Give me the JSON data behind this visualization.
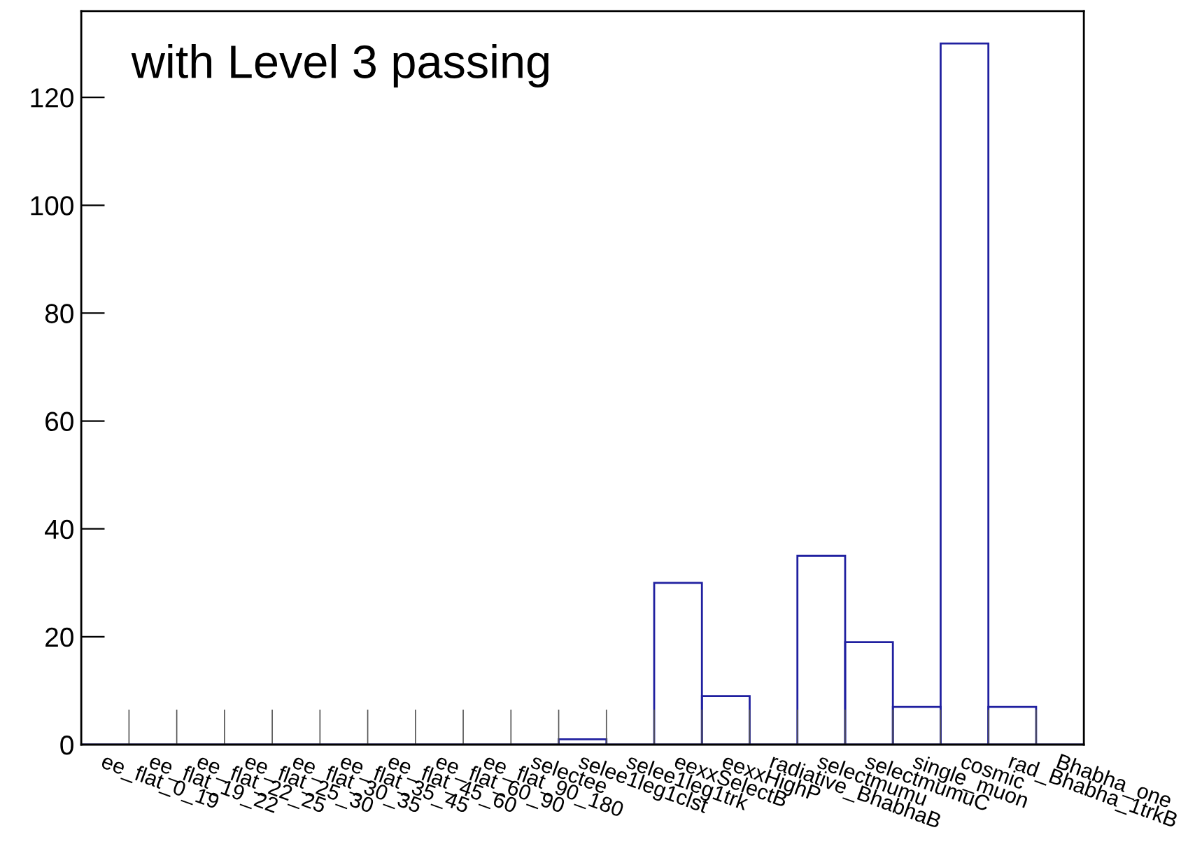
{
  "chart_data": {
    "type": "bar",
    "title": "with Level 3 passing",
    "categories": [
      "ee_flat_0_19",
      "ee_flat_19_22",
      "ee_flat_22_25",
      "ee_flat_25_30",
      "ee_flat_30_35",
      "ee_flat_35_45",
      "ee_flat_45_60",
      "ee_flat_60_90",
      "ee_flat_90_180",
      "selectee",
      "selee1leg1clst",
      "selee1leg1trk",
      "eexxSelectB",
      "eexxHighP",
      "radiative_BhabhaB",
      "selectmumu",
      "selectmumuC",
      "single_muon",
      "cosmic",
      "rad_Bhabha_1trkB",
      "Bhabha_one"
    ],
    "values": [
      0,
      0,
      0,
      0,
      0,
      0,
      0,
      0,
      0,
      0,
      1,
      0,
      30,
      9,
      0,
      35,
      19,
      7,
      130,
      7,
      0
    ],
    "color": "#2020a0",
    "ylim": [
      0,
      136
    ],
    "yticks": [
      0,
      20,
      40,
      60,
      80,
      100,
      120
    ],
    "grid": false,
    "legend": false
  }
}
